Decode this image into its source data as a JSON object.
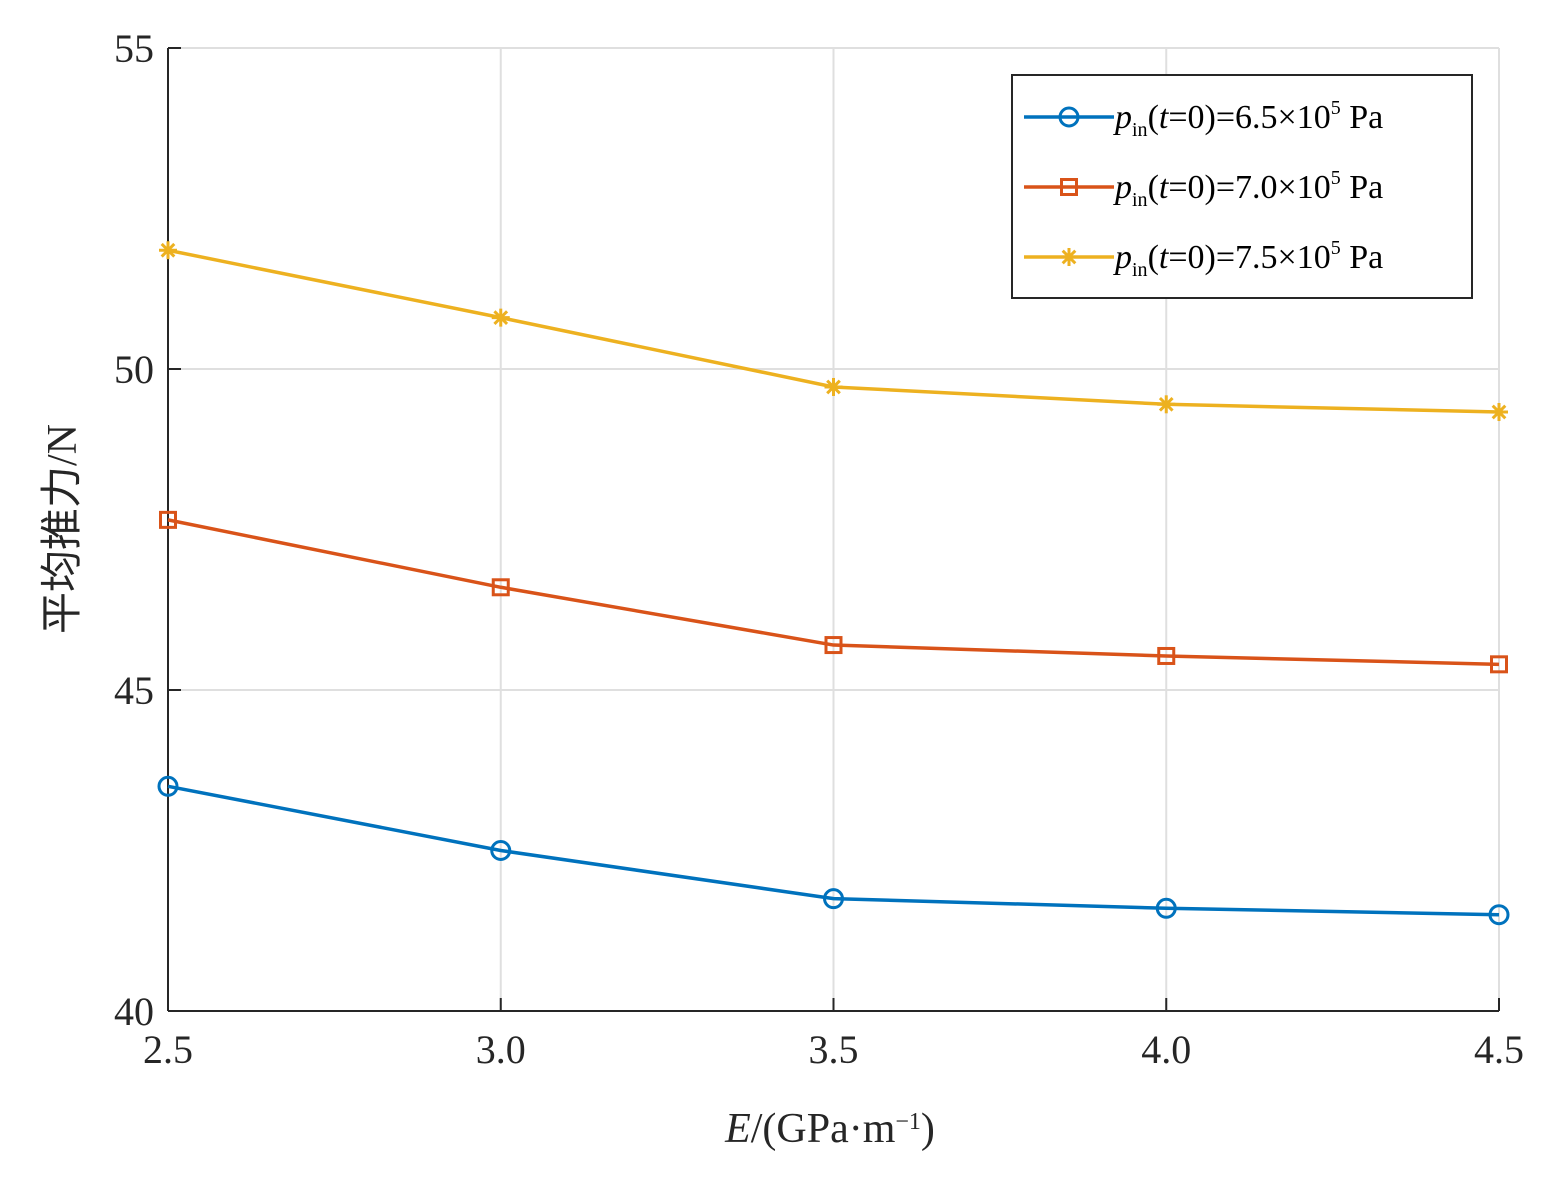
{
  "chart_data": {
    "type": "line",
    "title": "",
    "xlabel": {
      "var": "E",
      "rest": "/(GPa·m",
      "exp": "−1",
      "close": ")"
    },
    "ylabel": "平均推力/N",
    "xlim": [
      2.5,
      4.5
    ],
    "ylim": [
      40,
      55
    ],
    "x": [
      2.5,
      3.0,
      3.5,
      4.0,
      4.5
    ],
    "x_tick_labels": [
      "2.5",
      "3.0",
      "3.5",
      "4.0",
      "4.5"
    ],
    "y_ticks": [
      40,
      45,
      50,
      55
    ],
    "y_tick_labels": [
      "40",
      "45",
      "50",
      "55"
    ],
    "grid": true,
    "legend_position": "top-right",
    "series": [
      {
        "legend": {
          "p": "p",
          "sub": "in",
          "mid": "(",
          "t": "t",
          "eq": "=0)=6.5×10",
          "sup": "5",
          "unit": " Pa"
        },
        "values": [
          43.5,
          42.5,
          41.75,
          41.6,
          41.5
        ],
        "color": "#0072BD",
        "marker": "circle"
      },
      {
        "legend": {
          "p": "p",
          "sub": "in",
          "mid": "(",
          "t": "t",
          "eq": "=0)=7.0×10",
          "sup": "5",
          "unit": " Pa"
        },
        "values": [
          47.65,
          46.6,
          45.7,
          45.53,
          45.4
        ],
        "color": "#D95319",
        "marker": "square"
      },
      {
        "legend": {
          "p": "p",
          "sub": "in",
          "mid": "(",
          "t": "t",
          "eq": "=0)=7.5×10",
          "sup": "5",
          "unit": " Pa"
        },
        "values": [
          51.85,
          50.8,
          49.72,
          49.45,
          49.33
        ],
        "color": "#EDB120",
        "marker": "asterisk"
      }
    ]
  }
}
